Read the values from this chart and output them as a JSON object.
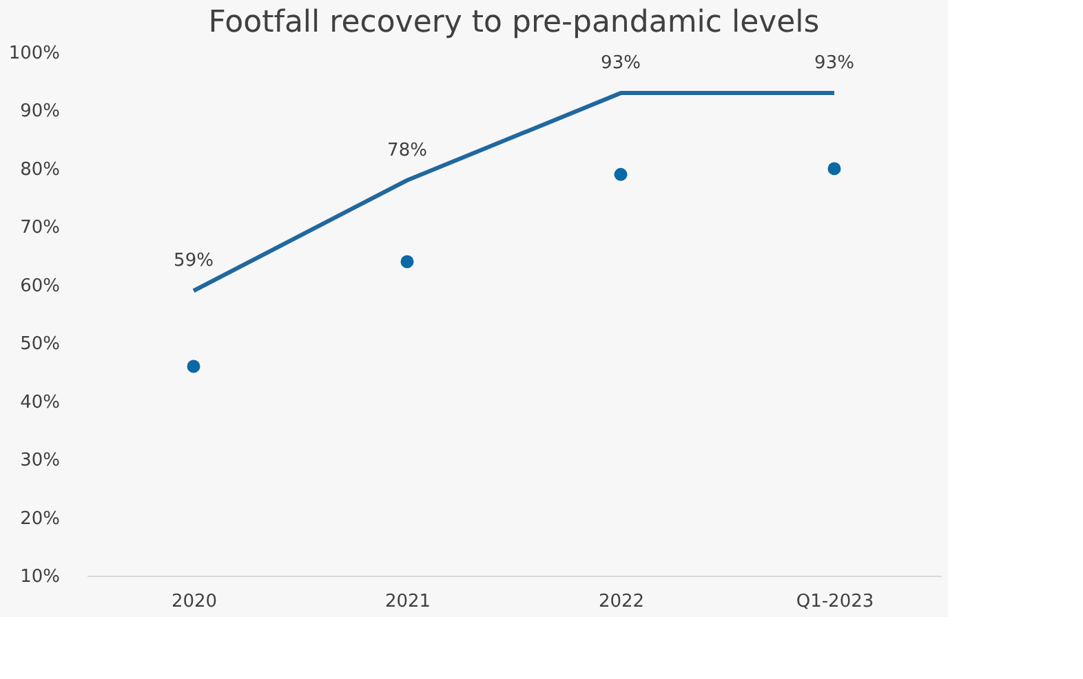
{
  "chart_data": {
    "type": "line",
    "title": "Footfall recovery to pre-pandamic levels",
    "categories": [
      "2020",
      "2021",
      "2022",
      "Q1-2023"
    ],
    "series": [
      {
        "color": "#20689e",
        "values": [
          59,
          78,
          93,
          93
        ],
        "value_labels": [
          "59%",
          "78%",
          "93%",
          "93%"
        ]
      },
      {
        "type": "scatter",
        "color": "#0b69a6",
        "values": [
          46,
          64,
          79,
          80
        ],
        "marker": "circle"
      }
    ],
    "ylim": [
      10,
      100
    ],
    "yticks": [
      {
        "value": 10,
        "label": "10%"
      },
      {
        "value": 20,
        "label": "20%"
      },
      {
        "value": 30,
        "label": "30%"
      },
      {
        "value": 40,
        "label": "40%"
      },
      {
        "value": 50,
        "label": "50%"
      },
      {
        "value": 60,
        "label": "60%"
      },
      {
        "value": 70,
        "label": "70%"
      },
      {
        "value": 80,
        "label": "80%"
      },
      {
        "value": 90,
        "label": "90%"
      },
      {
        "value": 100,
        "label": "100%"
      }
    ],
    "grid": false
  }
}
